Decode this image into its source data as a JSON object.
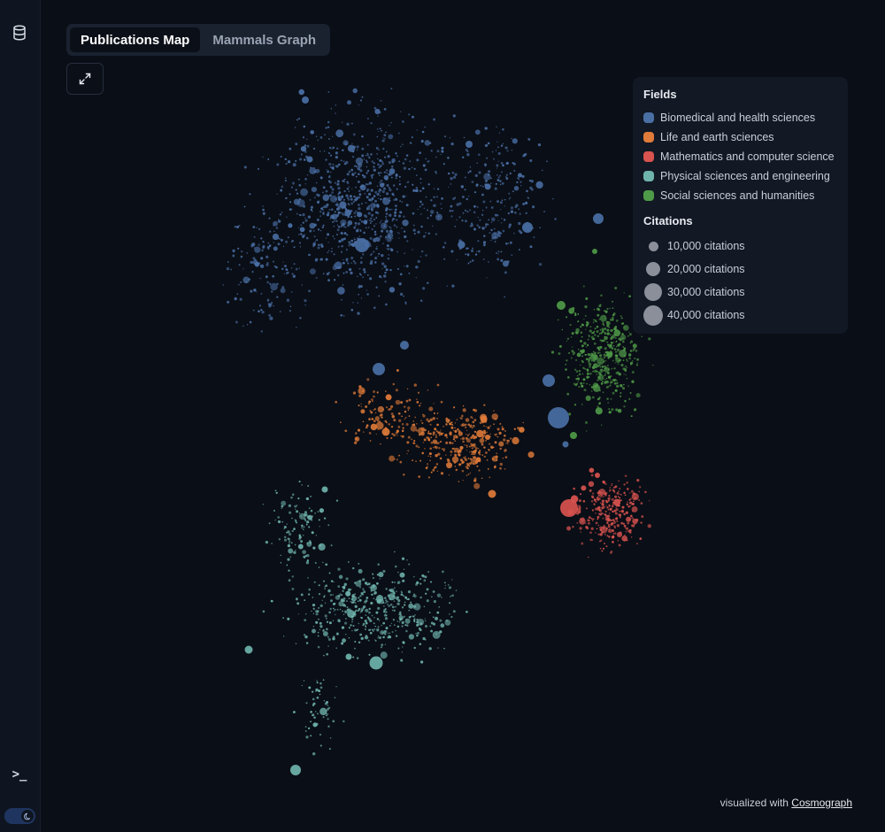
{
  "tabs": [
    {
      "label": "Publications Map",
      "active": true
    },
    {
      "label": "Mammals Graph",
      "active": false
    }
  ],
  "sidebar": {
    "top_icon": "database-icon",
    "bottom_icon": "terminal-icon",
    "terminal_glyph": ">_",
    "toggle_icon": "moon-icon"
  },
  "legend": {
    "fields_title": "Fields",
    "fields": [
      {
        "label": "Biomedical and health sciences",
        "color": "#4a6fa5"
      },
      {
        "label": "Life and earth sciences",
        "color": "#e07b39"
      },
      {
        "label": "Mathematics and computer science",
        "color": "#d9534f"
      },
      {
        "label": "Physical sciences and engineering",
        "color": "#6fb3ad"
      },
      {
        "label": "Social sciences and humanities",
        "color": "#4f9a48"
      }
    ],
    "citations_title": "Citations",
    "citations": [
      {
        "label": "10,000 citations",
        "value": 10000
      },
      {
        "label": "20,000 citations",
        "value": 20000
      },
      {
        "label": "30,000 citations",
        "value": 30000
      },
      {
        "label": "40,000 citations",
        "value": 40000
      }
    ]
  },
  "credit": {
    "prefix": "visualized with",
    "link": "Cosmograph"
  }
}
